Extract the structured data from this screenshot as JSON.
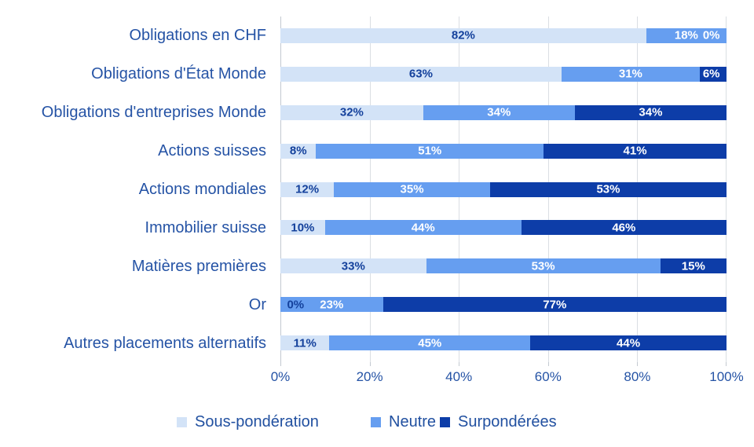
{
  "chart_data": {
    "type": "bar",
    "orientation": "horizontal",
    "stacked": true,
    "title": "",
    "categories": [
      "Obligations en CHF",
      "Obligations d'État Monde",
      "Obligations d'entreprises Monde",
      "Actions suisses",
      "Actions mondiales",
      "Immobilier suisse",
      "Matières premières",
      "Or",
      "Autres placements alternatifs"
    ],
    "series": [
      {
        "name": "Sous-pondération",
        "color": "#d3e3f7",
        "values": [
          82,
          63,
          32,
          8,
          12,
          10,
          33,
          0,
          11
        ]
      },
      {
        "name": "Neutre",
        "color": "#669ef0",
        "values": [
          18,
          31,
          34,
          51,
          35,
          44,
          53,
          23,
          45
        ]
      },
      {
        "name": "Surpondérées",
        "color": "#0d3da8",
        "values": [
          0,
          6,
          34,
          41,
          53,
          46,
          15,
          77,
          44
        ]
      }
    ],
    "value_suffix": "%",
    "x_axis": {
      "min": 0,
      "max": 100,
      "tick_labels": [
        "0%",
        "20%",
        "40%",
        "60%",
        "80%",
        "100%"
      ]
    },
    "legend": {
      "position": "bottom",
      "entries": [
        "Sous-pondération",
        "Neutre",
        "Surpondérées"
      ]
    },
    "grid": "vertical-lines"
  },
  "colors": {
    "segment_light": "#d3e3f7",
    "segment_medium": "#669ef0",
    "segment_dark": "#0d3da8",
    "label_on_light": "#14419c",
    "label_on_dark": "#ffffff",
    "axis_text": "#2553a5",
    "gridline": "#dadee3",
    "axis_line": "#c3c9d1",
    "background": "#ffffff"
  }
}
